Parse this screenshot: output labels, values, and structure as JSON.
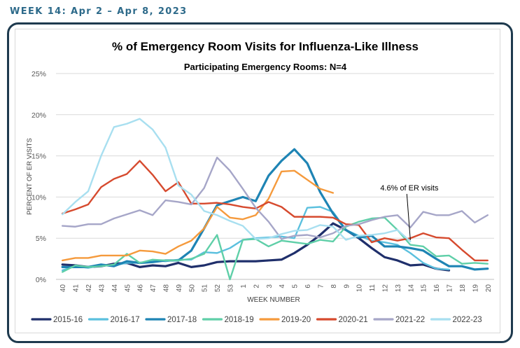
{
  "page": {
    "header": "WEEK 14: Apr 2 – Apr 8, 2023"
  },
  "chart_data": {
    "type": "line",
    "title": "% of Emergency Room Visits for Influenza-Like Illness",
    "subtitle": "Participating Emergency Rooms: N=4",
    "xlabel": "WEEK NUMBER",
    "ylabel": "PERCENT OF ER VISITS",
    "ylim": [
      0,
      25
    ],
    "yticks": [
      "0%",
      "5%",
      "10%",
      "15%",
      "20%",
      "25%"
    ],
    "categories": [
      "40",
      "41",
      "42",
      "43",
      "44",
      "45",
      "46",
      "47",
      "48",
      "49",
      "50",
      "51",
      "52",
      "53",
      "1",
      "2",
      "3",
      "4",
      "5",
      "6",
      "7",
      "8",
      "9",
      "10",
      "11",
      "12",
      "13",
      "14",
      "15",
      "16",
      "17",
      "18",
      "19",
      "20"
    ],
    "grid": true,
    "legend_position": "bottom",
    "annotation": {
      "text": "4.6% of ER visits",
      "series": "2022-23",
      "week": "14",
      "value": 4.6
    },
    "series": [
      {
        "name": "2015-16",
        "color": "#1f2f6b",
        "values": [
          1.8,
          1.7,
          1.5,
          1.6,
          1.9,
          2.0,
          1.5,
          1.7,
          1.6,
          2.0,
          1.5,
          1.7,
          2.1,
          2.2,
          2.2,
          2.2,
          2.3,
          2.4,
          3.2,
          4.2,
          5.4,
          6.8,
          6.0,
          5.0,
          3.8,
          2.7,
          2.3,
          1.7,
          1.8,
          1.3,
          1.1,
          null,
          null,
          null
        ]
      },
      {
        "name": "2016-17",
        "color": "#5bc0de",
        "values": [
          1.1,
          1.6,
          1.4,
          1.7,
          1.7,
          2.0,
          2.0,
          2.3,
          2.2,
          2.4,
          2.4,
          3.3,
          3.2,
          3.8,
          4.8,
          5.0,
          5.1,
          5.2,
          5.0,
          8.7,
          8.8,
          8.2,
          6.0,
          5.3,
          4.7,
          4.5,
          4.2,
          3.2,
          2.0,
          1.3,
          1.2,
          null,
          null,
          null
        ]
      },
      {
        "name": "2017-18",
        "color": "#1e84b4",
        "values": [
          1.5,
          1.5,
          1.5,
          1.8,
          1.6,
          2.2,
          2.0,
          2.1,
          2.3,
          2.3,
          3.5,
          6.2,
          9.0,
          9.5,
          10.0,
          9.5,
          12.6,
          14.4,
          15.8,
          14.1,
          10.6,
          8.0,
          6.0,
          5.1,
          5.3,
          4.0,
          4.0,
          3.8,
          3.5,
          2.5,
          1.6,
          1.6,
          1.2,
          1.3
        ]
      },
      {
        "name": "2018-19",
        "color": "#5fcfa8",
        "values": [
          0.9,
          1.7,
          1.5,
          1.6,
          1.8,
          3.1,
          2.0,
          2.4,
          2.3,
          2.3,
          2.5,
          3.1,
          5.4,
          0.0,
          4.8,
          4.9,
          4.0,
          4.7,
          4.5,
          4.3,
          4.8,
          4.6,
          6.4,
          7.0,
          7.4,
          7.5,
          6.0,
          4.2,
          4.0,
          2.8,
          2.9,
          1.9,
          2.0,
          1.9
        ]
      },
      {
        "name": "2019-20",
        "color": "#f59a3c",
        "values": [
          2.3,
          2.6,
          2.6,
          2.9,
          2.9,
          2.9,
          3.5,
          3.4,
          3.1,
          4.0,
          4.7,
          6.2,
          8.8,
          7.5,
          7.3,
          7.8,
          9.8,
          13.1,
          13.2,
          12.1,
          11.0,
          10.5,
          null,
          null,
          null,
          null,
          null,
          null,
          null,
          null,
          null,
          null,
          null,
          null
        ]
      },
      {
        "name": "2020-21",
        "color": "#d64a2e",
        "values": [
          8.0,
          8.5,
          9.1,
          11.2,
          12.2,
          12.8,
          14.4,
          12.7,
          10.7,
          11.8,
          9.2,
          9.2,
          9.3,
          9.1,
          8.8,
          8.6,
          9.4,
          8.8,
          7.6,
          7.6,
          7.6,
          7.5,
          6.7,
          6.6,
          4.5,
          5.0,
          4.7,
          5.0,
          5.6,
          5.1,
          5.0,
          3.6,
          2.3,
          2.3
        ]
      },
      {
        "name": "2021-22",
        "color": "#a6a6c8",
        "values": [
          6.5,
          6.4,
          6.7,
          6.7,
          7.4,
          7.9,
          8.4,
          7.8,
          9.6,
          9.4,
          9.1,
          11.1,
          14.8,
          13.2,
          11.0,
          8.7,
          7.0,
          4.9,
          5.3,
          5.4,
          5.1,
          5.6,
          6.5,
          6.7,
          7.2,
          7.6,
          7.8,
          6.3,
          8.2,
          7.8,
          7.8,
          8.3,
          6.9,
          7.8
        ]
      },
      {
        "name": "2022-23",
        "color": "#a8dff0",
        "values": [
          7.9,
          9.4,
          10.7,
          15.0,
          18.5,
          18.9,
          19.5,
          18.2,
          16.0,
          11.4,
          10.3,
          8.3,
          7.8,
          7.1,
          6.5,
          4.9,
          5.0,
          5.5,
          5.9,
          6.0,
          6.6,
          6.4,
          4.8,
          5.3,
          5.4,
          5.6,
          6.0,
          4.6,
          null,
          null,
          null,
          null,
          null,
          null
        ]
      }
    ]
  }
}
